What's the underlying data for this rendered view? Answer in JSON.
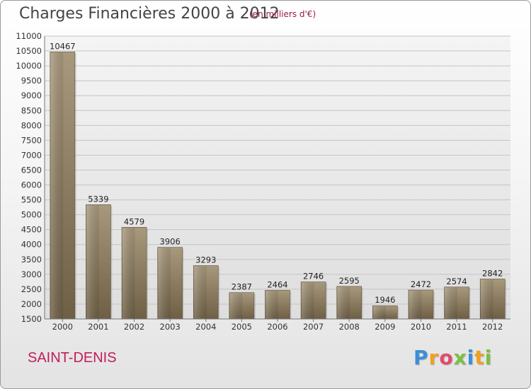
{
  "header": {
    "title": "Charges Financières 2000 à 2012",
    "unit": "(en milliers d'€)"
  },
  "footer": {
    "city": "SAINT-DENIS",
    "logo_letters": [
      "P",
      "r",
      "o",
      "x",
      "i",
      "t",
      "i"
    ],
    "logo_colors": [
      "#3b8fd9",
      "#f0a020",
      "#e34a6f",
      "#7bc043",
      "#3b8fd9",
      "#f0a020",
      "#7bc043"
    ]
  },
  "chart_data": {
    "type": "bar",
    "title": "Charges Financières 2000 à 2012",
    "subtitle": "(en milliers d'€)",
    "categories": [
      "2000",
      "2001",
      "2002",
      "2003",
      "2004",
      "2005",
      "2006",
      "2007",
      "2008",
      "2009",
      "2010",
      "2011",
      "2012"
    ],
    "values": [
      10467,
      5339,
      4579,
      3906,
      3293,
      2387,
      2464,
      2746,
      2595,
      1946,
      2472,
      2574,
      2842
    ],
    "ylim": [
      1500,
      11000
    ],
    "yticks": [
      1500,
      2000,
      2500,
      3000,
      3500,
      4000,
      4500,
      5000,
      5500,
      6000,
      6500,
      7000,
      7500,
      8000,
      8500,
      9000,
      9500,
      10000,
      10500,
      11000
    ],
    "grid": true,
    "legend": "none",
    "bar_color": "#8e7e62"
  }
}
